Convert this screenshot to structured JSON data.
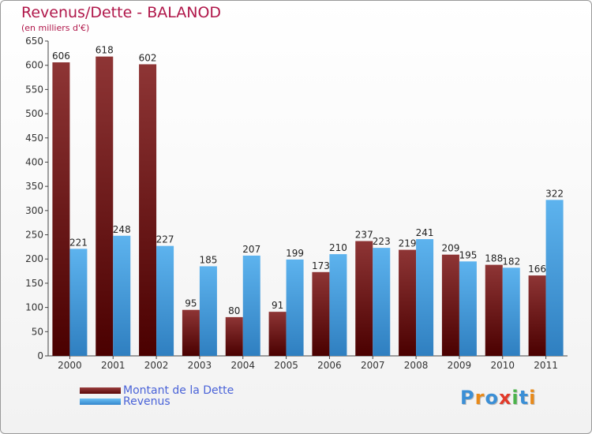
{
  "chart_data": {
    "type": "bar",
    "title": "Revenus/Dette - BALANOD",
    "subtitle": "(en milliers d'€)",
    "categories": [
      "2000",
      "2001",
      "2002",
      "2003",
      "2004",
      "2005",
      "2006",
      "2007",
      "2008",
      "2009",
      "2010",
      "2011"
    ],
    "series": [
      {
        "name": "Montant de la Dette",
        "color": "#8b1e1e",
        "values": [
          606,
          618,
          602,
          95,
          80,
          91,
          173,
          237,
          219,
          209,
          188,
          166
        ]
      },
      {
        "name": "Revenus",
        "color": "#4aa3e3",
        "values": [
          221,
          248,
          227,
          185,
          207,
          199,
          210,
          223,
          241,
          195,
          182,
          322
        ]
      }
    ],
    "ylim": [
      0,
      650
    ],
    "yticks": [
      0,
      50,
      100,
      150,
      200,
      250,
      300,
      350,
      400,
      450,
      500,
      550,
      600,
      650
    ],
    "grid": false,
    "legend_position": "bottom-left"
  },
  "legend": [
    {
      "label": "Montant de la Dette",
      "color": "#6b0f0f"
    },
    {
      "label": "Revenus",
      "color": "#4aa3e3"
    }
  ],
  "logo": {
    "letters": [
      "P",
      "r",
      "o",
      "x",
      "i",
      "t",
      "i"
    ],
    "colors": [
      "#3b8fd6",
      "#e88a1a",
      "#3b8fd6",
      "#e23a2a",
      "#4bb34b",
      "#3b8fd6",
      "#e88a1a"
    ]
  }
}
